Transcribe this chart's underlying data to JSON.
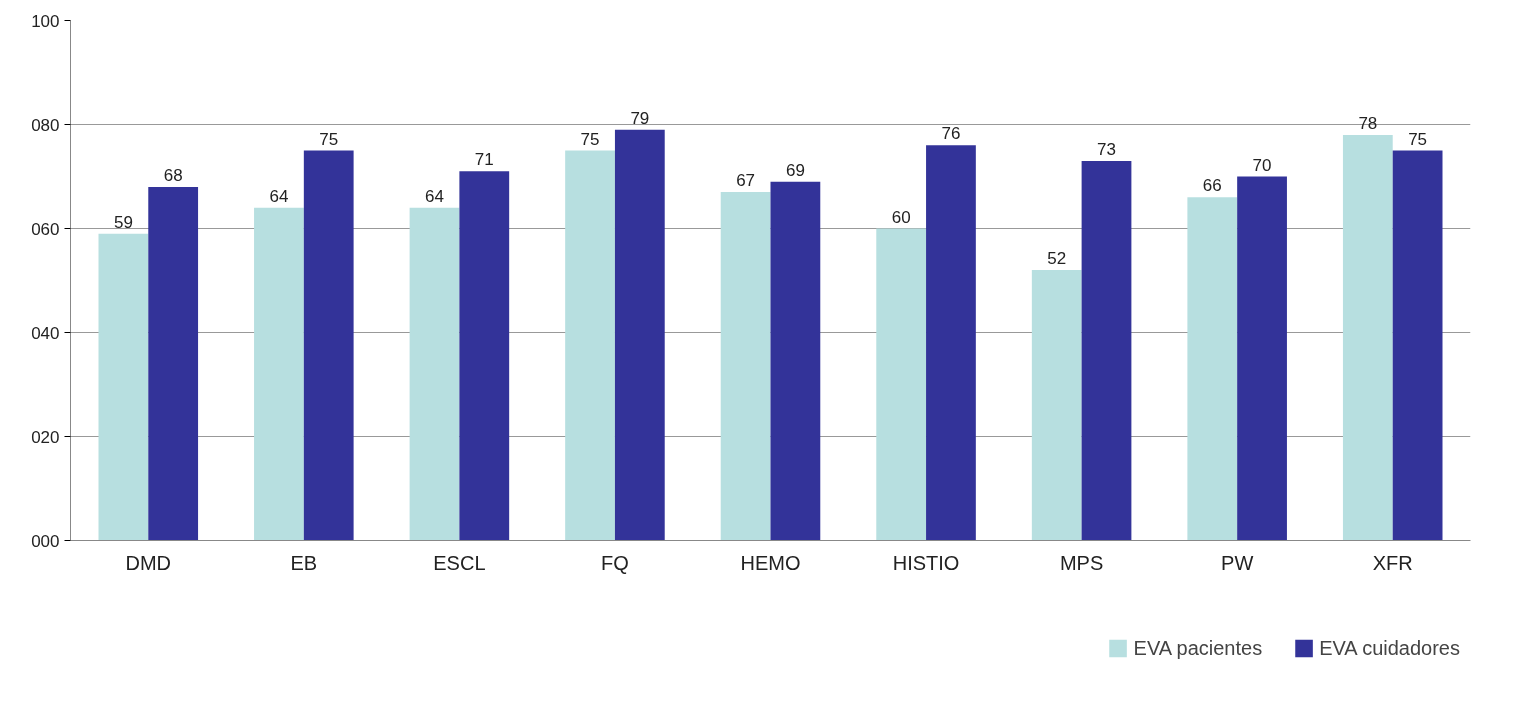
{
  "chart_data": {
    "type": "bar",
    "categories": [
      "DMD",
      "EB",
      "ESCL",
      "FQ",
      "HEMO",
      "HISTIO",
      "MPS",
      "PW",
      "XFR"
    ],
    "series": [
      {
        "name": "EVA pacientes",
        "color": "#b7dfe0",
        "values": [
          59,
          64,
          64,
          75,
          67,
          60,
          52,
          66,
          78
        ]
      },
      {
        "name": "EVA cuidadores",
        "color": "#333399",
        "values": [
          68,
          75,
          71,
          79,
          69,
          76,
          73,
          70,
          75
        ]
      }
    ],
    "ylim": [
      0,
      100
    ],
    "yticks": [
      {
        "value": 0,
        "label": "000"
      },
      {
        "value": 20,
        "label": "020"
      },
      {
        "value": 40,
        "label": "040"
      },
      {
        "value": 60,
        "label": "060"
      },
      {
        "value": 80,
        "label": "080"
      },
      100
    ],
    "grid": "y",
    "legend": "bottom",
    "data_labels": true
  }
}
